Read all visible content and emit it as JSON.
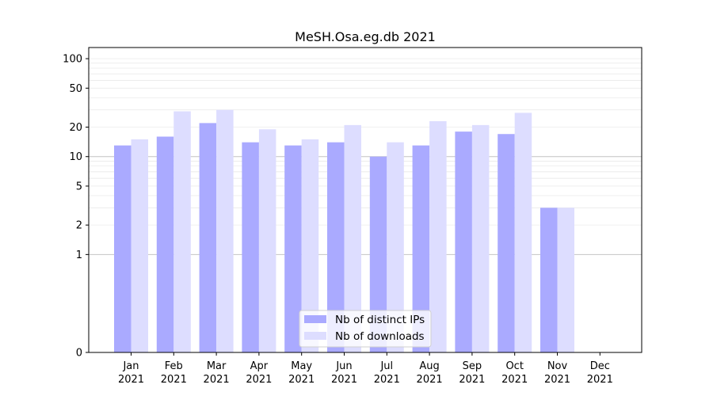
{
  "chart_data": {
    "type": "bar",
    "title": "MeSH.Osa.eg.db 2021",
    "xlabel": "",
    "ylabel": "",
    "yscale": "symlog",
    "ylim": [
      0,
      130
    ],
    "yticks": [
      0,
      1,
      2,
      5,
      10,
      20,
      50,
      100
    ],
    "categories": [
      {
        "month": "Jan",
        "year": "2021"
      },
      {
        "month": "Feb",
        "year": "2021"
      },
      {
        "month": "Mar",
        "year": "2021"
      },
      {
        "month": "Apr",
        "year": "2021"
      },
      {
        "month": "May",
        "year": "2021"
      },
      {
        "month": "Jun",
        "year": "2021"
      },
      {
        "month": "Jul",
        "year": "2021"
      },
      {
        "month": "Aug",
        "year": "2021"
      },
      {
        "month": "Sep",
        "year": "2021"
      },
      {
        "month": "Oct",
        "year": "2021"
      },
      {
        "month": "Nov",
        "year": "2021"
      },
      {
        "month": "Dec",
        "year": "2021"
      }
    ],
    "series": [
      {
        "name": "Nb of distinct IPs",
        "color": "#aaaaff",
        "values": [
          13,
          16,
          22,
          14,
          13,
          14,
          10,
          13,
          18,
          17,
          3,
          0
        ]
      },
      {
        "name": "Nb of downloads",
        "color": "#ddddff",
        "values": [
          15,
          29,
          30,
          19,
          15,
          21,
          14,
          23,
          21,
          28,
          3,
          0
        ]
      }
    ],
    "grid": true,
    "legend_position": "bottom-center"
  }
}
